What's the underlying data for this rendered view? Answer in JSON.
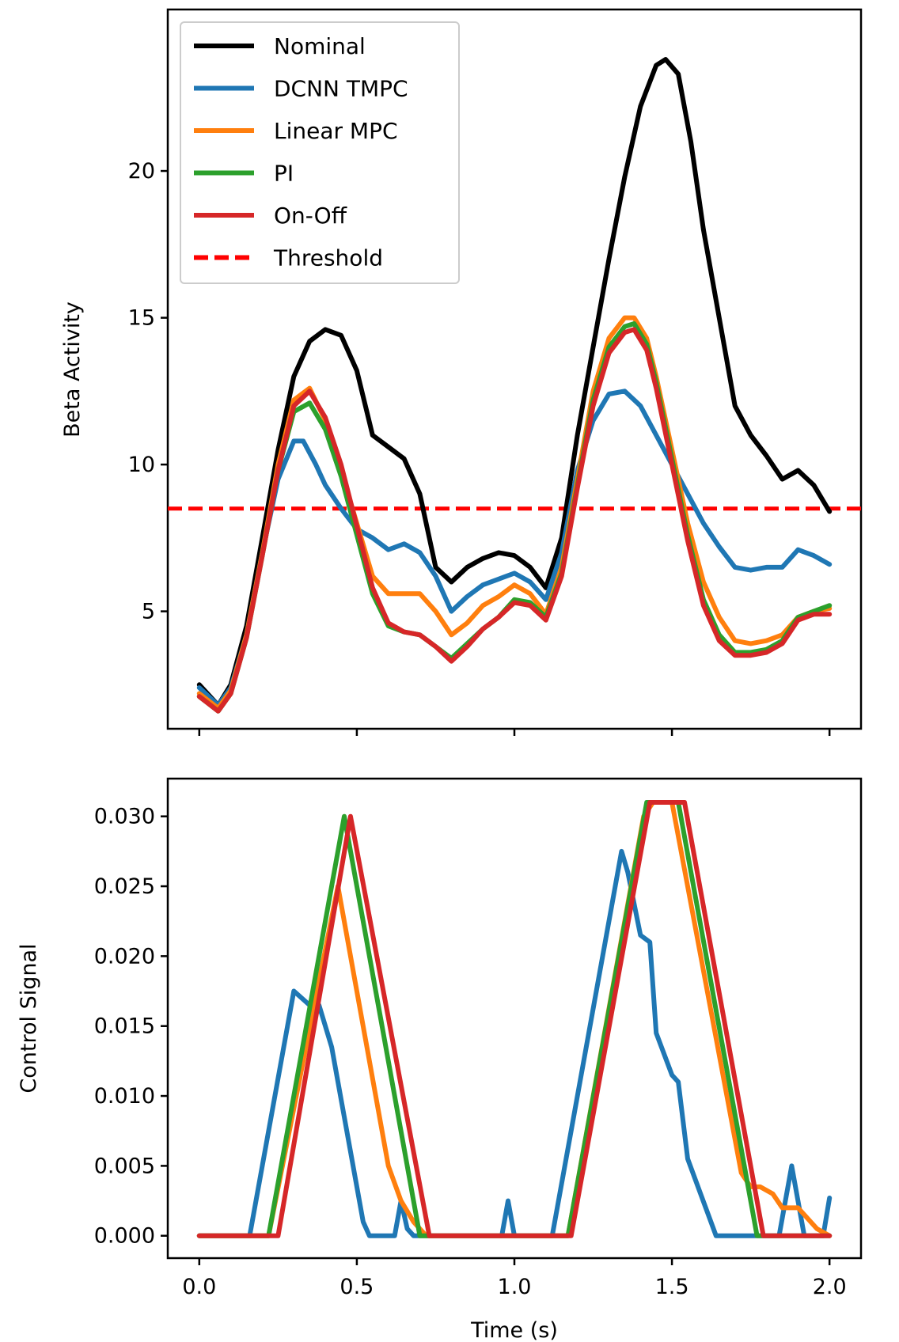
{
  "chart_data": [
    {
      "type": "line",
      "id": "top",
      "xlabel": "",
      "ylabel": "Beta Activity",
      "xlim": [
        -0.1,
        2.1
      ],
      "ylim": [
        1.0,
        25.5
      ],
      "xticks": [
        0.0,
        0.5,
        1.0,
        1.5,
        2.0
      ],
      "xtick_labels_visible": false,
      "yticks": [
        5,
        10,
        15,
        20
      ],
      "ytick_labels": [
        "5",
        "10",
        "15",
        "20"
      ],
      "legend_position": "upper-left",
      "threshold": {
        "name": "Threshold",
        "value": 8.5,
        "color": "#ff0000",
        "style": "dashed"
      },
      "series": [
        {
          "name": "Nominal",
          "color": "#000000",
          "x": [
            0.0,
            0.06,
            0.1,
            0.15,
            0.2,
            0.25,
            0.3,
            0.35,
            0.4,
            0.45,
            0.5,
            0.55,
            0.6,
            0.65,
            0.7,
            0.75,
            0.8,
            0.85,
            0.9,
            0.95,
            1.0,
            1.05,
            1.1,
            1.15,
            1.2,
            1.25,
            1.3,
            1.35,
            1.4,
            1.45,
            1.48,
            1.52,
            1.56,
            1.6,
            1.65,
            1.7,
            1.75,
            1.8,
            1.85,
            1.9,
            1.95,
            2.0
          ],
          "y": [
            2.5,
            1.8,
            2.5,
            4.5,
            7.5,
            10.5,
            13.0,
            14.2,
            14.6,
            14.4,
            13.2,
            11.0,
            10.6,
            10.2,
            9.0,
            6.5,
            6.0,
            6.5,
            6.8,
            7.0,
            6.9,
            6.5,
            5.8,
            7.5,
            11.0,
            14.0,
            17.0,
            19.8,
            22.2,
            23.6,
            23.8,
            23.3,
            21.0,
            18.0,
            15.0,
            12.0,
            11.0,
            10.3,
            9.5,
            9.8,
            9.3,
            8.4
          ]
        },
        {
          "name": "DCNN TMPC",
          "color": "#1f77b4",
          "x": [
            0.0,
            0.06,
            0.1,
            0.15,
            0.2,
            0.25,
            0.3,
            0.33,
            0.37,
            0.4,
            0.45,
            0.5,
            0.55,
            0.6,
            0.65,
            0.7,
            0.75,
            0.8,
            0.85,
            0.9,
            0.95,
            1.0,
            1.05,
            1.1,
            1.15,
            1.2,
            1.25,
            1.3,
            1.35,
            1.4,
            1.45,
            1.5,
            1.55,
            1.6,
            1.65,
            1.7,
            1.75,
            1.8,
            1.85,
            1.9,
            1.95,
            2.0
          ],
          "y": [
            2.4,
            1.8,
            2.4,
            4.2,
            7.0,
            9.5,
            10.8,
            10.8,
            10.0,
            9.3,
            8.5,
            7.8,
            7.5,
            7.1,
            7.3,
            7.0,
            6.2,
            5.0,
            5.5,
            5.9,
            6.1,
            6.3,
            6.0,
            5.4,
            7.0,
            9.8,
            11.5,
            12.4,
            12.5,
            12.0,
            11.0,
            10.0,
            9.0,
            8.0,
            7.2,
            6.5,
            6.4,
            6.5,
            6.5,
            7.1,
            6.9,
            6.6
          ]
        },
        {
          "name": "Linear MPC",
          "color": "#ff7f0e",
          "x": [
            0.0,
            0.06,
            0.1,
            0.15,
            0.2,
            0.25,
            0.3,
            0.35,
            0.4,
            0.45,
            0.5,
            0.55,
            0.6,
            0.65,
            0.7,
            0.75,
            0.8,
            0.85,
            0.9,
            0.95,
            1.0,
            1.05,
            1.1,
            1.15,
            1.2,
            1.25,
            1.3,
            1.35,
            1.38,
            1.42,
            1.45,
            1.5,
            1.55,
            1.6,
            1.65,
            1.7,
            1.75,
            1.8,
            1.85,
            1.9,
            1.95,
            2.0
          ],
          "y": [
            2.2,
            1.7,
            2.3,
            4.2,
            7.0,
            10.0,
            12.2,
            12.6,
            11.5,
            9.8,
            8.0,
            6.2,
            5.6,
            5.6,
            5.6,
            5.0,
            4.2,
            4.6,
            5.2,
            5.5,
            5.9,
            5.6,
            4.9,
            6.5,
            9.5,
            12.5,
            14.3,
            15.0,
            15.0,
            14.3,
            13.0,
            10.5,
            8.0,
            6.0,
            4.8,
            4.0,
            3.9,
            4.0,
            4.2,
            4.8,
            5.0,
            5.1
          ]
        },
        {
          "name": "PI",
          "color": "#2ca02c",
          "x": [
            0.0,
            0.06,
            0.1,
            0.15,
            0.2,
            0.25,
            0.3,
            0.35,
            0.4,
            0.45,
            0.5,
            0.55,
            0.6,
            0.65,
            0.7,
            0.75,
            0.8,
            0.85,
            0.9,
            0.95,
            1.0,
            1.05,
            1.1,
            1.15,
            1.2,
            1.25,
            1.3,
            1.35,
            1.38,
            1.42,
            1.45,
            1.5,
            1.55,
            1.6,
            1.65,
            1.7,
            1.75,
            1.8,
            1.85,
            1.9,
            1.95,
            2.0
          ],
          "y": [
            2.1,
            1.6,
            2.2,
            4.1,
            6.9,
            9.8,
            11.8,
            12.1,
            11.2,
            9.6,
            7.6,
            5.6,
            4.5,
            4.3,
            4.2,
            3.8,
            3.4,
            3.9,
            4.4,
            4.8,
            5.4,
            5.3,
            4.8,
            6.3,
            9.3,
            12.2,
            14.0,
            14.7,
            14.8,
            14.1,
            12.8,
            10.2,
            7.6,
            5.4,
            4.2,
            3.6,
            3.6,
            3.7,
            4.0,
            4.8,
            5.0,
            5.2
          ]
        },
        {
          "name": "On-Off",
          "color": "#d62728",
          "x": [
            0.0,
            0.06,
            0.1,
            0.15,
            0.2,
            0.25,
            0.3,
            0.35,
            0.4,
            0.45,
            0.5,
            0.55,
            0.6,
            0.65,
            0.7,
            0.75,
            0.8,
            0.85,
            0.9,
            0.95,
            1.0,
            1.05,
            1.1,
            1.15,
            1.2,
            1.25,
            1.3,
            1.35,
            1.38,
            1.42,
            1.45,
            1.5,
            1.55,
            1.6,
            1.65,
            1.7,
            1.75,
            1.8,
            1.85,
            1.9,
            1.95,
            2.0
          ],
          "y": [
            2.1,
            1.6,
            2.2,
            4.1,
            6.9,
            9.8,
            12.0,
            12.5,
            11.6,
            10.0,
            7.9,
            5.8,
            4.6,
            4.3,
            4.2,
            3.8,
            3.3,
            3.8,
            4.4,
            4.8,
            5.3,
            5.2,
            4.7,
            6.2,
            9.2,
            12.0,
            13.8,
            14.5,
            14.6,
            13.9,
            12.6,
            10.0,
            7.4,
            5.2,
            4.0,
            3.5,
            3.5,
            3.6,
            3.9,
            4.7,
            4.9,
            4.9
          ]
        }
      ]
    },
    {
      "type": "line",
      "id": "bottom",
      "xlabel": "Time (s)",
      "ylabel": "Control Signal",
      "xlim": [
        -0.1,
        2.1
      ],
      "ylim": [
        -0.0016,
        0.0327
      ],
      "xticks": [
        0.0,
        0.5,
        1.0,
        1.5,
        2.0
      ],
      "xtick_labels": [
        "0.0",
        "0.5",
        "1.0",
        "1.5",
        "2.0"
      ],
      "yticks": [
        0.0,
        0.005,
        0.01,
        0.015,
        0.02,
        0.025,
        0.03
      ],
      "ytick_labels": [
        "0.000",
        "0.005",
        "0.010",
        "0.015",
        "0.020",
        "0.025",
        "0.030"
      ],
      "series": [
        {
          "name": "DCNN TMPC",
          "color": "#1f77b4",
          "x": [
            0.0,
            0.16,
            0.3,
            0.35,
            0.38,
            0.42,
            0.52,
            0.54,
            0.62,
            0.64,
            0.66,
            0.68,
            0.96,
            0.98,
            1.0,
            1.12,
            1.34,
            1.36,
            1.4,
            1.43,
            1.45,
            1.5,
            1.52,
            1.55,
            1.64,
            1.66,
            1.84,
            1.88,
            1.92,
            1.94,
            1.98,
            2.0
          ],
          "y": [
            0.0,
            0.0,
            0.0175,
            0.0165,
            0.0165,
            0.0135,
            0.001,
            0.0,
            0.0,
            0.0025,
            0.0005,
            0.0,
            0.0,
            0.0025,
            0.0,
            0.0,
            0.0275,
            0.026,
            0.0215,
            0.021,
            0.0145,
            0.0115,
            0.011,
            0.0055,
            0.0,
            0.0,
            0.0,
            0.005,
            0.0,
            0.0,
            0.0,
            0.0027
          ]
        },
        {
          "name": "Linear MPC",
          "color": "#ff7f0e",
          "x": [
            0.0,
            0.22,
            0.44,
            0.6,
            0.64,
            0.68,
            0.72,
            1.17,
            1.41,
            1.44,
            1.5,
            1.72,
            1.75,
            1.78,
            1.82,
            1.85,
            1.9,
            1.96,
            2.0
          ],
          "y": [
            0.0,
            0.0,
            0.025,
            0.005,
            0.0025,
            0.001,
            0.0,
            0.0,
            0.03,
            0.031,
            0.031,
            0.0045,
            0.0035,
            0.0035,
            0.003,
            0.002,
            0.002,
            0.0005,
            0.0
          ]
        },
        {
          "name": "PI",
          "color": "#2ca02c",
          "x": [
            0.0,
            0.22,
            0.46,
            0.7,
            1.17,
            1.42,
            1.52,
            1.77,
            2.0
          ],
          "y": [
            0.0,
            0.0,
            0.03,
            0.0,
            0.0,
            0.031,
            0.031,
            0.0,
            0.0
          ]
        },
        {
          "name": "On-Off",
          "color": "#d62728",
          "x": [
            0.0,
            0.25,
            0.48,
            0.73,
            1.18,
            1.43,
            1.54,
            1.79,
            2.0
          ],
          "y": [
            0.0,
            0.0,
            0.03,
            0.0,
            0.0,
            0.031,
            0.031,
            0.0,
            0.0
          ]
        }
      ]
    }
  ]
}
